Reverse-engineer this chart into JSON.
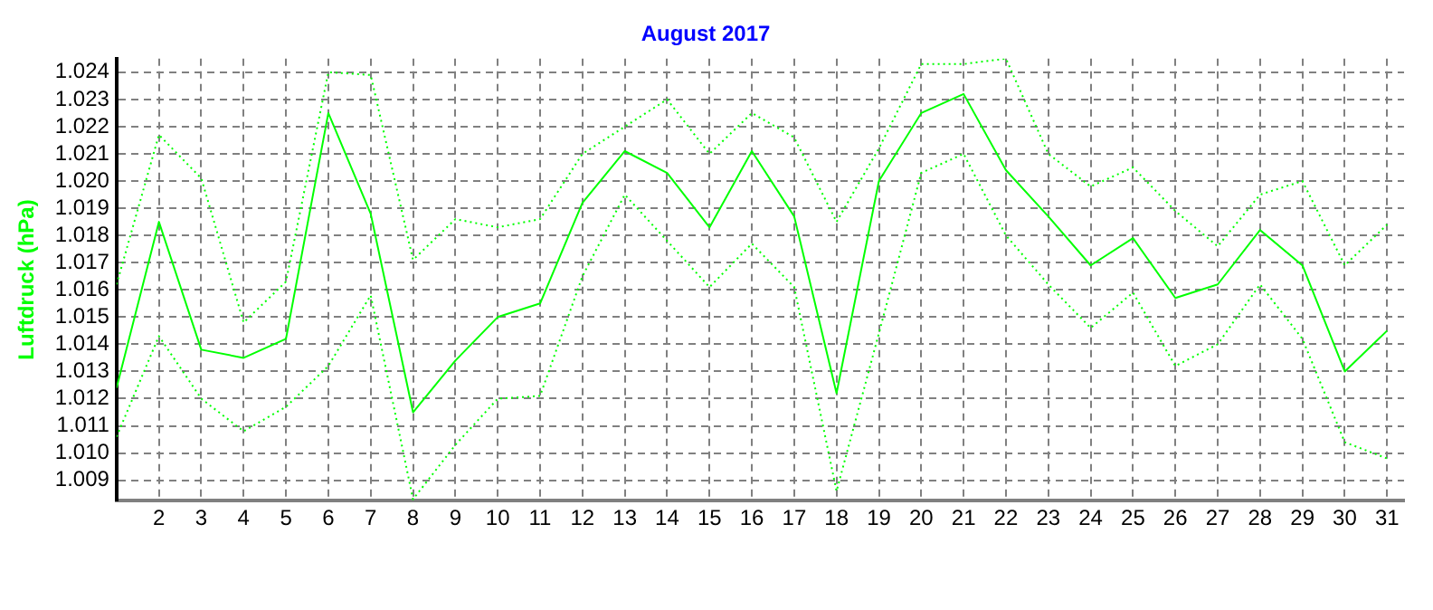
{
  "chart_data": {
    "type": "line",
    "title": "August 2017",
    "ylabel": "Luftdruck (hPa)",
    "x": [
      1,
      2,
      3,
      4,
      5,
      6,
      7,
      8,
      9,
      10,
      11,
      12,
      13,
      14,
      15,
      16,
      17,
      18,
      19,
      20,
      21,
      22,
      23,
      24,
      25,
      26,
      27,
      28,
      29,
      30,
      31
    ],
    "xlim": [
      1,
      31.4
    ],
    "xticks": [
      2,
      3,
      4,
      5,
      6,
      7,
      8,
      9,
      10,
      11,
      12,
      13,
      14,
      15,
      16,
      17,
      18,
      19,
      20,
      21,
      22,
      23,
      24,
      25,
      26,
      27,
      28,
      29,
      30,
      31
    ],
    "ylim": [
      1.00825,
      1.0245
    ],
    "yticks": [
      1.009,
      {
        "value": 1.01,
        "label": "1.010"
      },
      1.011,
      1.012,
      1.013,
      1.014,
      1.015,
      1.016,
      1.017,
      1.018,
      1.019,
      {
        "value": 1.02,
        "label": "1.020"
      },
      1.021,
      1.022,
      1.023,
      1.024
    ],
    "grid": true,
    "legend": false,
    "marker": "none",
    "series": [
      {
        "color": "#00ff00",
        "line_style": "dotted",
        "values": [
          1.0162,
          1.0217,
          1.0201,
          1.0148,
          1.0163,
          1.024,
          1.0239,
          1.0171,
          1.0186,
          1.0183,
          1.0186,
          1.021,
          1.022,
          1.023,
          1.021,
          1.0225,
          1.0216,
          1.0185,
          1.0212,
          1.0243,
          1.0243,
          1.0245,
          1.021,
          1.0198,
          1.0205,
          1.0189,
          1.0176,
          1.0195,
          1.02,
          1.0169,
          1.0184
        ]
      },
      {
        "color": "#00ff00",
        "line_style": "solid",
        "values": [
          1.0124,
          1.0185,
          1.0138,
          1.0135,
          1.0142,
          1.0225,
          1.0188,
          1.0115,
          1.0134,
          1.015,
          1.0155,
          1.0192,
          1.0211,
          1.0203,
          1.0183,
          1.0211,
          1.0187,
          1.0122,
          1.02,
          1.0225,
          1.0232,
          1.0204,
          1.0187,
          1.0169,
          1.0179,
          1.0157,
          1.0162,
          1.0182,
          1.0169,
          1.013,
          1.0145
        ]
      },
      {
        "color": "#00ff00",
        "line_style": "dotted",
        "values": [
          1.0106,
          1.0143,
          1.012,
          1.0108,
          1.0117,
          1.0132,
          1.0158,
          1.0083,
          1.0103,
          1.012,
          1.0121,
          1.0165,
          1.0195,
          1.0178,
          1.0161,
          1.0177,
          1.0161,
          1.0086,
          1.0144,
          1.0203,
          1.021,
          1.018,
          1.0162,
          1.0146,
          1.0159,
          1.0132,
          1.014,
          1.0162,
          1.0142,
          1.0104,
          1.0098
        ]
      }
    ]
  }
}
